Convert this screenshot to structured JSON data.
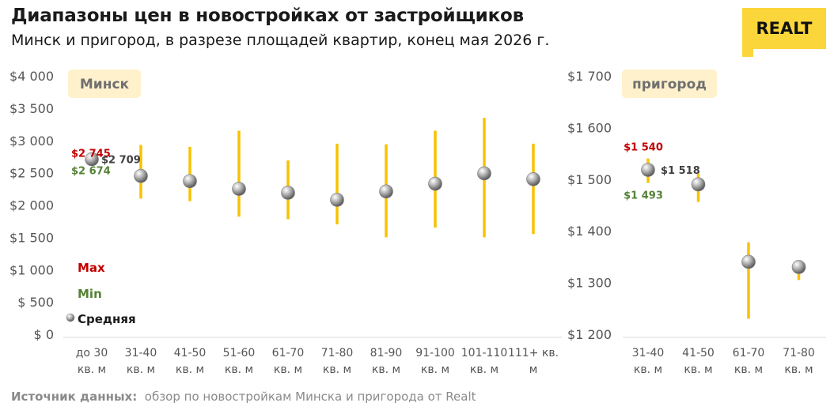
{
  "header": {
    "title": "Диапазоны цен в новостройках от застройщиков",
    "subtitle": "Минск и пригород, в разрезе площадей квартир, конец мая 2026 г."
  },
  "logo": {
    "text": "REALT",
    "color": "#FBD63A"
  },
  "source": {
    "label": "Источник данных:",
    "text": "обзор по новостройкам Минска и пригорода от Realt"
  },
  "legend": {
    "max": "Max",
    "min": "Min",
    "avg": "Средняя"
  },
  "colors": {
    "bar": "#F8C200",
    "max": "#C00000",
    "min": "#548235",
    "avg_label": "#404040",
    "panel_label_bg": "#FFF1CC",
    "panel_label_text": "#707070",
    "axis_text": "#555555",
    "grid": "#D9D9D9"
  },
  "chart_data": [
    {
      "type": "range",
      "panel_label": "Минск",
      "ylim": [
        0,
        4000
      ],
      "yticks": [
        0,
        500,
        1000,
        1500,
        2000,
        2500,
        3000,
        3500,
        4000
      ],
      "ytick_labels": [
        "$ 0",
        "$ 500",
        "$1 000",
        "$1 500",
        "$2 000",
        "$2 500",
        "$3 000",
        "$3 500",
        "$4 000"
      ],
      "categories": [
        [
          "до 30",
          "кв. м"
        ],
        [
          "31-40",
          "кв. м"
        ],
        [
          "41-50",
          "кв. м"
        ],
        [
          "51-60",
          "кв. м"
        ],
        [
          "61-70",
          "кв. м"
        ],
        [
          "71-80",
          "кв. м"
        ],
        [
          "81-90",
          "кв. м"
        ],
        [
          "91-100",
          "кв. м"
        ],
        [
          "101-110",
          "кв. м"
        ],
        [
          "111+ кв.",
          "м"
        ]
      ],
      "max": [
        2745,
        2930,
        2900,
        3150,
        2690,
        2950,
        2940,
        3150,
        3350,
        2950
      ],
      "min": [
        2674,
        2100,
        2060,
        1820,
        1780,
        1700,
        1500,
        1650,
        1500,
        1550
      ],
      "avg": [
        2709,
        2450,
        2370,
        2250,
        2190,
        2080,
        2210,
        2330,
        2490,
        2400
      ],
      "labels": {
        "index": 0,
        "max": "$2 745",
        "avg": "$2 709",
        "min": "$2 674"
      }
    },
    {
      "type": "range",
      "panel_label": "пригород",
      "ylim": [
        1200,
        1700
      ],
      "yticks": [
        1200,
        1300,
        1400,
        1500,
        1600,
        1700
      ],
      "ytick_labels": [
        "$1 200",
        "$1 300",
        "$1 400",
        "$1 500",
        "$1 600",
        "$1 700"
      ],
      "categories": [
        [
          "31-40",
          "кв. м"
        ],
        [
          "41-50",
          "кв. м"
        ],
        [
          "61-70",
          "кв. м"
        ],
        [
          "71-80",
          "кв. м"
        ]
      ],
      "max": [
        1540,
        1511,
        1378,
        1333
      ],
      "min": [
        1493,
        1456,
        1230,
        1305
      ],
      "avg": [
        1518,
        1490,
        1340,
        1330
      ],
      "labels": {
        "index": 0,
        "max": "$1 540",
        "avg": "$1 518",
        "min": "$1 493"
      }
    }
  ]
}
